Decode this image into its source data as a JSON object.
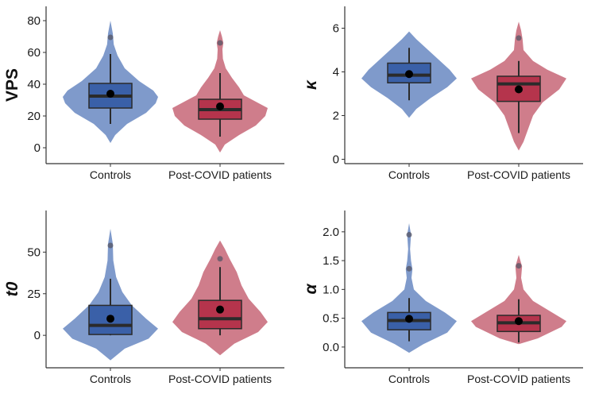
{
  "colors": {
    "controls_violin": "#7f9acb",
    "controls_box": "#3a60a8",
    "patients_violin": "#cf7d8b",
    "patients_box": "#b5344c",
    "line": "#2b2b2b",
    "mean": "#000000",
    "outlier": "#555566"
  },
  "chart_data": [
    {
      "type": "violin",
      "ylabel": "VPS",
      "ylabel_italic": false,
      "ylim": [
        -10,
        89
      ],
      "yticks": [
        0,
        20,
        40,
        60,
        80
      ],
      "ytick_labels": [
        "0",
        "20",
        "40",
        "60",
        "80"
      ],
      "categories": [
        "Controls",
        "Post-COVID patients"
      ],
      "groups": [
        {
          "name": "Controls",
          "whisker_low": 15,
          "q1": 25,
          "median": 32.5,
          "q3": 40.5,
          "whisker_high": 59,
          "mean": 34,
          "outliers": [
            69.5
          ],
          "density": [
            [
              3,
              0
            ],
            [
              8,
              0.1
            ],
            [
              15,
              0.35
            ],
            [
              22,
              0.75
            ],
            [
              28,
              0.95
            ],
            [
              32,
              1
            ],
            [
              36,
              0.9
            ],
            [
              42,
              0.6
            ],
            [
              50,
              0.3
            ],
            [
              58,
              0.15
            ],
            [
              65,
              0.07
            ],
            [
              72,
              0.05
            ],
            [
              80,
              0
            ]
          ]
        },
        {
          "name": "Post-COVID patients",
          "whisker_low": 7,
          "q1": 18,
          "median": 24,
          "q3": 30.5,
          "whisker_high": 47,
          "mean": 26,
          "outliers": [
            66
          ],
          "density": [
            [
              -3,
              0
            ],
            [
              2,
              0.1
            ],
            [
              8,
              0.4
            ],
            [
              14,
              0.75
            ],
            [
              20,
              0.95
            ],
            [
              25,
              1
            ],
            [
              29,
              0.75
            ],
            [
              33,
              0.5
            ],
            [
              38,
              0.4
            ],
            [
              44,
              0.25
            ],
            [
              50,
              0.12
            ],
            [
              56,
              0.06
            ],
            [
              62,
              0.05
            ],
            [
              66,
              0.07
            ],
            [
              70,
              0.04
            ],
            [
              74,
              0
            ]
          ]
        }
      ]
    },
    {
      "type": "violin",
      "ylabel": "κ",
      "ylabel_italic": true,
      "ylim": [
        -0.2,
        7
      ],
      "yticks": [
        0,
        2,
        4,
        6
      ],
      "ytick_labels": [
        "0",
        "2",
        "4",
        "6"
      ],
      "categories": [
        "Controls",
        "Post-COVID patients"
      ],
      "groups": [
        {
          "name": "Controls",
          "whisker_low": 2.7,
          "q1": 3.5,
          "median": 3.85,
          "q3": 4.4,
          "whisker_high": 5.1,
          "mean": 3.9,
          "outliers": [],
          "density": [
            [
              1.9,
              0
            ],
            [
              2.3,
              0.15
            ],
            [
              2.8,
              0.45
            ],
            [
              3.3,
              0.8
            ],
            [
              3.7,
              1
            ],
            [
              4.1,
              0.85
            ],
            [
              4.6,
              0.6
            ],
            [
              5.1,
              0.35
            ],
            [
              5.5,
              0.15
            ],
            [
              5.85,
              0
            ]
          ]
        },
        {
          "name": "Post-COVID patients",
          "whisker_low": 1.2,
          "q1": 2.65,
          "median": 3.45,
          "q3": 3.8,
          "whisker_high": 4.5,
          "mean": 3.2,
          "outliers": [
            5.55
          ],
          "density": [
            [
              0.4,
              0
            ],
            [
              0.8,
              0.1
            ],
            [
              1.4,
              0.2
            ],
            [
              2.0,
              0.3
            ],
            [
              2.6,
              0.5
            ],
            [
              3.2,
              0.85
            ],
            [
              3.7,
              1
            ],
            [
              4.1,
              0.6
            ],
            [
              4.5,
              0.3
            ],
            [
              5.0,
              0.1
            ],
            [
              5.5,
              0.08
            ],
            [
              5.9,
              0.05
            ],
            [
              6.3,
              0
            ]
          ]
        }
      ]
    },
    {
      "type": "violin",
      "ylabel": "t0",
      "ylabel_italic": true,
      "ylim": [
        -19.5,
        75
      ],
      "yticks": [
        0,
        25,
        50
      ],
      "ytick_labels": [
        "0",
        "25",
        "50"
      ],
      "categories": [
        "Controls",
        "Post-COVID patients"
      ],
      "groups": [
        {
          "name": "Controls",
          "whisker_low": 0,
          "q1": 0.5,
          "median": 6,
          "q3": 18,
          "whisker_high": 34,
          "mean": 10,
          "outliers": [
            54
          ],
          "density": [
            [
              -15,
              0
            ],
            [
              -8,
              0.3
            ],
            [
              -2,
              0.8
            ],
            [
              4,
              1
            ],
            [
              10,
              0.75
            ],
            [
              18,
              0.45
            ],
            [
              26,
              0.25
            ],
            [
              35,
              0.12
            ],
            [
              45,
              0.06
            ],
            [
              55,
              0.05
            ],
            [
              64,
              0
            ]
          ]
        },
        {
          "name": "Post-COVID patients",
          "whisker_low": 0,
          "q1": 4,
          "median": 10,
          "q3": 21,
          "whisker_high": 41,
          "mean": 15.5,
          "outliers": [
            46
          ],
          "density": [
            [
              -12,
              0
            ],
            [
              -5,
              0.3
            ],
            [
              2,
              0.8
            ],
            [
              8,
              1
            ],
            [
              14,
              0.85
            ],
            [
              22,
              0.6
            ],
            [
              30,
              0.45
            ],
            [
              38,
              0.35
            ],
            [
              46,
              0.2
            ],
            [
              52,
              0.1
            ],
            [
              57,
              0
            ]
          ]
        }
      ]
    },
    {
      "type": "violin",
      "ylabel": "α",
      "ylabel_italic": true,
      "ylim": [
        -0.36,
        2.37
      ],
      "yticks": [
        0,
        0.5,
        1,
        1.5,
        2
      ],
      "ytick_labels": [
        "0.0",
        "0.5",
        "1.0",
        "1.5",
        "2.0"
      ],
      "categories": [
        "Controls",
        "Post-COVID patients"
      ],
      "groups": [
        {
          "name": "Controls",
          "whisker_low": 0.1,
          "q1": 0.3,
          "median": 0.46,
          "q3": 0.6,
          "whisker_high": 0.85,
          "mean": 0.49,
          "outliers": [
            1.36,
            1.95
          ],
          "density": [
            [
              -0.1,
              0
            ],
            [
              0.05,
              0.3
            ],
            [
              0.25,
              0.8
            ],
            [
              0.45,
              1
            ],
            [
              0.6,
              0.75
            ],
            [
              0.8,
              0.35
            ],
            [
              1.0,
              0.1
            ],
            [
              1.2,
              0.05
            ],
            [
              1.35,
              0.07
            ],
            [
              1.5,
              0.04
            ],
            [
              1.7,
              0.02
            ],
            [
              1.95,
              0.04
            ],
            [
              2.15,
              0
            ]
          ]
        },
        {
          "name": "Post-COVID patients",
          "whisker_low": 0.08,
          "q1": 0.27,
          "median": 0.42,
          "q3": 0.55,
          "whisker_high": 0.83,
          "mean": 0.45,
          "outliers": [
            1.41
          ],
          "density": [
            [
              0.05,
              0
            ],
            [
              0.15,
              0.4
            ],
            [
              0.35,
              0.9
            ],
            [
              0.45,
              1
            ],
            [
              0.6,
              0.7
            ],
            [
              0.8,
              0.3
            ],
            [
              1.0,
              0.1
            ],
            [
              1.2,
              0.05
            ],
            [
              1.4,
              0.07
            ],
            [
              1.6,
              0
            ]
          ]
        }
      ]
    }
  ]
}
